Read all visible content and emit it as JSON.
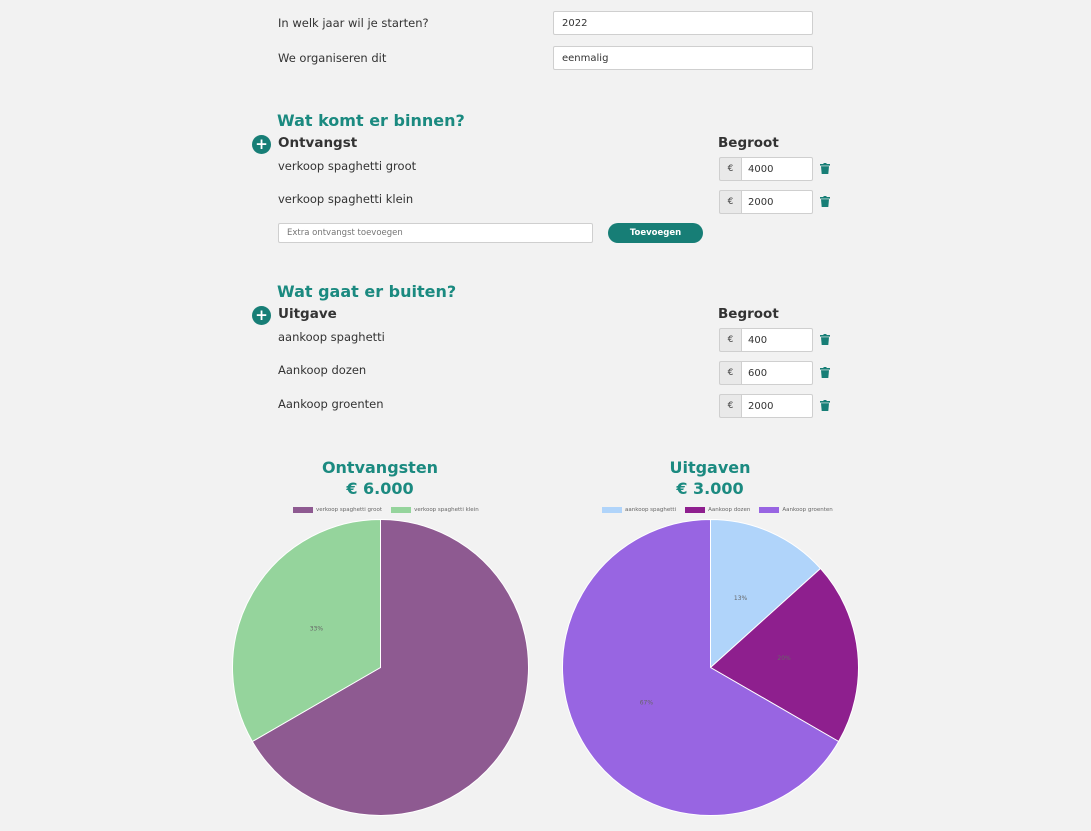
{
  "start_year": {
    "label": "In welk jaar wil je starten?",
    "value": "2022"
  },
  "organize": {
    "label": "We organiseren dit",
    "value": "eenmalig"
  },
  "income": {
    "section_title": "Wat komt er binnen?",
    "column_label": "Ontvangst",
    "budget_label": "Begroot",
    "currency": "€",
    "items": [
      {
        "name": "verkoop spaghetti groot",
        "value": "4000"
      },
      {
        "name": "verkoop spaghetti klein",
        "value": "2000"
      }
    ],
    "add_placeholder": "Extra ontvangst toevoegen",
    "add_button": "Toevoegen"
  },
  "expense": {
    "section_title": "Wat gaat er buiten?",
    "column_label": "Uitgave",
    "budget_label": "Begroot",
    "currency": "€",
    "items": [
      {
        "name": "aankoop spaghetti",
        "value": "400"
      },
      {
        "name": "Aankoop dozen",
        "value": "600"
      },
      {
        "name": "Aankoop groenten",
        "value": "2000"
      }
    ]
  },
  "colors": {
    "accent": "#177e76",
    "heading": "#1b8a80"
  },
  "chart_data": [
    {
      "type": "pie",
      "title": "Ontvangsten",
      "subtitle": "€ 6.000",
      "legend": "top",
      "categories": [
        "verkoop spaghetti groot",
        "verkoop spaghetti klein"
      ],
      "values": [
        4000,
        2000
      ],
      "colors": [
        "#8e5a91",
        "#95d49c"
      ],
      "labels": [
        "",
        "33%"
      ]
    },
    {
      "type": "pie",
      "title": "Uitgaven",
      "subtitle": "€ 3.000",
      "legend": "top",
      "categories": [
        "aankoop spaghetti",
        "Aankoop dozen",
        "Aankoop groenten"
      ],
      "values": [
        400,
        600,
        2000
      ],
      "colors": [
        "#b0d4fa",
        "#8e1f8e",
        "#9865e2"
      ],
      "labels": [
        "13%",
        "20%",
        "67%"
      ]
    }
  ]
}
